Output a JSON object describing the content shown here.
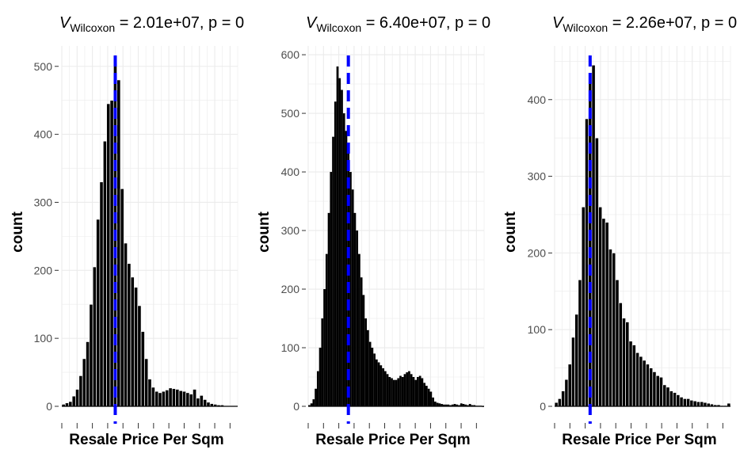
{
  "chart_data": [
    {
      "type": "bar",
      "title": {
        "var": "V",
        "subscript": "Wilcoxon",
        "rest": " = 2.01e+07, p = 0"
      },
      "xlabel": "Resale Price Per Sqm",
      "ylabel": "count",
      "ylim": [
        0,
        530
      ],
      "yticks": [
        0,
        100,
        200,
        300,
        400,
        500
      ],
      "grid": true,
      "reference_line_color": "#0000ff",
      "reference_line_style": "dashed",
      "reference_bin": 15,
      "bar_fill": "#000000",
      "bar_outline": "#ffffff",
      "values": [
        3,
        5,
        7,
        15,
        25,
        45,
        70,
        95,
        150,
        205,
        275,
        330,
        390,
        445,
        450,
        505,
        480,
        320,
        240,
        210,
        190,
        175,
        148,
        110,
        70,
        40,
        28,
        22,
        20,
        22,
        24,
        27,
        26,
        25,
        23,
        22,
        20,
        18,
        25,
        12,
        16,
        10,
        6,
        4,
        3,
        2,
        2,
        1,
        1,
        1,
        0
      ]
    },
    {
      "type": "bar",
      "title": {
        "var": "V",
        "subscript": "Wilcoxon",
        "rest": " = 6.40e+07, p = 0"
      },
      "xlabel": "Resale Price Per Sqm",
      "ylabel": "count",
      "ylim": [
        0,
        615
      ],
      "yticks": [
        0,
        100,
        200,
        300,
        400,
        500,
        600
      ],
      "grid": true,
      "reference_line_color": "#0000ff",
      "reference_line_style": "dashed",
      "reference_bin": 18,
      "bar_fill": "#000000",
      "bar_outline": "#000000",
      "values": [
        2,
        5,
        12,
        30,
        60,
        100,
        150,
        200,
        260,
        330,
        400,
        460,
        520,
        580,
        560,
        540,
        500,
        470,
        440,
        400,
        370,
        330,
        300,
        260,
        220,
        190,
        150,
        130,
        110,
        100,
        90,
        80,
        75,
        70,
        65,
        60,
        55,
        50,
        48,
        45,
        45,
        48,
        52,
        50,
        55,
        58,
        60,
        55,
        50,
        45,
        50,
        52,
        48,
        40,
        35,
        30,
        25,
        15,
        8,
        6,
        5,
        4,
        3,
        3,
        3,
        2,
        3,
        4,
        3,
        2,
        5,
        4,
        3,
        2,
        4,
        2,
        2,
        1,
        1,
        1,
        0
      ]
    },
    {
      "type": "bar",
      "title": {
        "var": "V",
        "subscript": "Wilcoxon",
        "rest": " = 2.26e+07, p = 0"
      },
      "xlabel": "Resale Price Per Sqm",
      "ylabel": "count",
      "ylim": [
        0,
        470
      ],
      "yticks": [
        0,
        100,
        200,
        300,
        400
      ],
      "grid": true,
      "reference_line_color": "#0000ff",
      "reference_line_style": "dashed",
      "reference_bin": 10,
      "bar_fill": "#000000",
      "bar_outline": "#ffffff",
      "values": [
        5,
        10,
        20,
        35,
        55,
        90,
        120,
        165,
        260,
        375,
        435,
        445,
        350,
        260,
        245,
        240,
        205,
        200,
        165,
        135,
        115,
        110,
        85,
        80,
        70,
        65,
        60,
        55,
        50,
        45,
        40,
        38,
        28,
        25,
        20,
        18,
        15,
        12,
        10,
        10,
        8,
        7,
        6,
        6,
        5,
        4,
        3,
        2,
        2,
        1,
        1,
        4
      ]
    }
  ]
}
